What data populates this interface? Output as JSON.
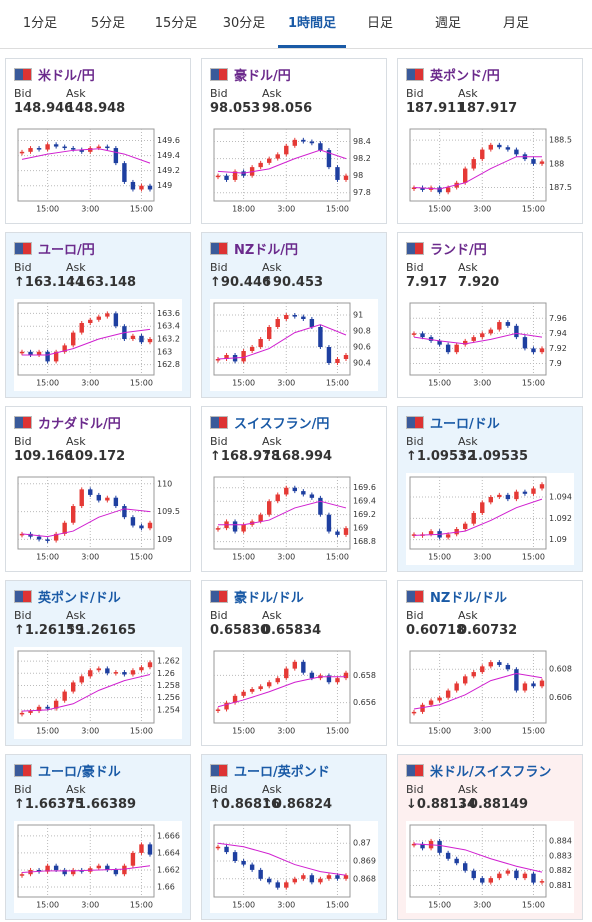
{
  "tabs": [
    "1分足",
    "5分足",
    "15分足",
    "30分足",
    "1時間足",
    "日足",
    "週足",
    "月足"
  ],
  "active_tab": 4,
  "bid_label": "Bid",
  "ask_label": "Ask",
  "cards": [
    {
      "name": "米ドル/円",
      "title_color": "#6b2a8c",
      "background": "#ffffff",
      "bid": "148.946",
      "ask": "148.948",
      "chart": {
        "ylim": [
          148.85,
          149.7
        ],
        "yticks": [
          149.6,
          149.4,
          149.2,
          149
        ],
        "xlim": [
          0,
          15
        ],
        "xticks": [
          {
            "value": 3,
            "label": "15:00"
          },
          {
            "value": 8,
            "label": "3:00"
          },
          {
            "value": 14,
            "label": "15:00"
          }
        ],
        "closes": [
          149.45,
          149.5,
          149.48,
          149.55,
          149.52,
          149.5,
          149.48,
          149.45,
          149.5,
          149.52,
          149.5,
          149.3,
          149.05,
          148.95,
          149.0,
          148.95
        ],
        "ma_x": [
          0,
          3,
          6,
          9,
          12,
          15
        ],
        "ma": [
          149.35,
          149.42,
          149.47,
          149.49,
          149.42,
          149.3
        ]
      }
    },
    {
      "name": "豪ドル/円",
      "title_color": "#6b2a8c",
      "background": "#ffffff",
      "bid": "98.053",
      "ask": "98.056",
      "chart": {
        "ylim": [
          97.75,
          98.5
        ],
        "yticks": [
          98.4,
          98.2,
          98,
          97.8
        ],
        "xlim": [
          0,
          15
        ],
        "xticks": [
          {
            "value": 3,
            "label": "18:00"
          },
          {
            "value": 8,
            "label": "3:00"
          },
          {
            "value": 14,
            "label": "15:00"
          }
        ],
        "closes": [
          98.0,
          97.95,
          98.05,
          98.0,
          98.1,
          98.15,
          98.2,
          98.25,
          98.35,
          98.42,
          98.4,
          98.38,
          98.3,
          98.1,
          97.95,
          98.0
        ],
        "ma_x": [
          0,
          3,
          6,
          9,
          12,
          15
        ],
        "ma": [
          98.05,
          98.03,
          98.08,
          98.2,
          98.3,
          98.2
        ]
      }
    },
    {
      "name": "英ポンド/円",
      "title_color": "#6b2a8c",
      "background": "#ffffff",
      "bid": "187.911",
      "ask": "187.917",
      "chart": {
        "ylim": [
          187.3,
          188.65
        ],
        "yticks": [
          188.5,
          188,
          187.5
        ],
        "xlim": [
          0,
          15
        ],
        "xticks": [
          {
            "value": 3,
            "label": "15:00"
          },
          {
            "value": 8,
            "label": "3:00"
          },
          {
            "value": 14,
            "label": "15:00"
          }
        ],
        "closes": [
          187.5,
          187.45,
          187.5,
          187.4,
          187.5,
          187.6,
          187.9,
          188.1,
          188.3,
          188.4,
          188.35,
          188.3,
          188.2,
          188.1,
          188.0,
          188.05
        ],
        "ma_x": [
          0,
          3,
          6,
          9,
          12,
          15
        ],
        "ma": [
          187.5,
          187.47,
          187.6,
          187.9,
          188.15,
          188.15
        ]
      }
    },
    {
      "name": "ユーロ/円",
      "title_color": "#6b2a8c",
      "background": "#eaf4fc",
      "bid": "↑163.144",
      "ask": "↑163.148",
      "chart": {
        "ylim": [
          162.7,
          163.7
        ],
        "yticks": [
          163.6,
          163.4,
          163.2,
          163,
          162.8
        ],
        "xlim": [
          0,
          15
        ],
        "xticks": [
          {
            "value": 3,
            "label": "15:00"
          },
          {
            "value": 8,
            "label": "3:00"
          },
          {
            "value": 14,
            "label": "15:00"
          }
        ],
        "closes": [
          163.0,
          162.95,
          163.0,
          162.85,
          163.0,
          163.1,
          163.3,
          163.45,
          163.5,
          163.55,
          163.6,
          163.4,
          163.2,
          163.25,
          163.15,
          163.2
        ],
        "ma_x": [
          0,
          3,
          6,
          9,
          12,
          15
        ],
        "ma": [
          162.95,
          162.95,
          163.05,
          163.2,
          163.3,
          163.35
        ]
      }
    },
    {
      "name": "NZドル/円",
      "title_color": "#6b2a8c",
      "background": "#eaf4fc",
      "bid": "↑90.446",
      "ask": "↑90.453",
      "chart": {
        "ylim": [
          90.3,
          91.1
        ],
        "yticks": [
          91,
          90.8,
          90.6,
          90.4
        ],
        "xlim": [
          0,
          15
        ],
        "xticks": [
          {
            "value": 3,
            "label": "15:00"
          },
          {
            "value": 8,
            "label": "3:00"
          },
          {
            "value": 14,
            "label": "15:00"
          }
        ],
        "closes": [
          90.45,
          90.5,
          90.42,
          90.55,
          90.6,
          90.7,
          90.85,
          90.95,
          91.0,
          90.98,
          90.95,
          90.85,
          90.6,
          90.4,
          90.45,
          90.5
        ],
        "ma_x": [
          0,
          3,
          6,
          9,
          12,
          15
        ],
        "ma": [
          90.45,
          90.47,
          90.58,
          90.78,
          90.88,
          90.75
        ]
      }
    },
    {
      "name": "ランド/円",
      "title_color": "#6b2a8c",
      "background": "#ffffff",
      "bid": "7.917",
      "ask": "7.920",
      "chart": {
        "ylim": [
          7.89,
          7.975
        ],
        "yticks": [
          7.96,
          7.94,
          7.92,
          7.9
        ],
        "xlim": [
          0,
          15
        ],
        "xticks": [
          {
            "value": 3,
            "label": "15:00"
          },
          {
            "value": 8,
            "label": "3:00"
          },
          {
            "value": 14,
            "label": "15:00"
          }
        ],
        "closes": [
          7.94,
          7.935,
          7.93,
          7.925,
          7.915,
          7.925,
          7.93,
          7.935,
          7.94,
          7.945,
          7.955,
          7.95,
          7.935,
          7.92,
          7.915,
          7.92
        ],
        "ma_x": [
          0,
          3,
          6,
          9,
          12,
          15
        ],
        "ma": [
          7.935,
          7.93,
          7.926,
          7.932,
          7.94,
          7.935
        ]
      }
    },
    {
      "name": "カナダドル/円",
      "title_color": "#6b2a8c",
      "background": "#ffffff",
      "bid": "109.166",
      "ask": "109.172",
      "chart": {
        "ylim": [
          108.9,
          110.05
        ],
        "yticks": [
          110,
          109.5,
          109
        ],
        "xlim": [
          0,
          15
        ],
        "xticks": [
          {
            "value": 3,
            "label": "15:00"
          },
          {
            "value": 8,
            "label": "3:00"
          },
          {
            "value": 14,
            "label": "15:00"
          }
        ],
        "closes": [
          109.1,
          109.05,
          109.0,
          108.98,
          109.1,
          109.3,
          109.6,
          109.9,
          109.8,
          109.7,
          109.75,
          109.6,
          109.4,
          109.25,
          109.2,
          109.3
        ],
        "ma_x": [
          0,
          3,
          6,
          9,
          12,
          15
        ],
        "ma": [
          109.1,
          109.05,
          109.15,
          109.4,
          109.55,
          109.5
        ]
      }
    },
    {
      "name": "スイスフラン/円",
      "title_color": "#1a5aa6",
      "background": "#ffffff",
      "bid": "↑168.978",
      "ask": "↑168.994",
      "chart": {
        "ylim": [
          168.75,
          169.7
        ],
        "yticks": [
          169.6,
          169.4,
          169.2,
          169,
          168.8
        ],
        "xlim": [
          0,
          15
        ],
        "xticks": [
          {
            "value": 3,
            "label": "15:00"
          },
          {
            "value": 8,
            "label": "3:00"
          },
          {
            "value": 14,
            "label": "15:00"
          }
        ],
        "closes": [
          169.0,
          169.1,
          168.95,
          169.05,
          169.1,
          169.2,
          169.4,
          169.5,
          169.6,
          169.55,
          169.5,
          169.45,
          169.2,
          168.95,
          168.9,
          169.0
        ],
        "ma_x": [
          0,
          3,
          6,
          9,
          12,
          15
        ],
        "ma": [
          169.05,
          169.05,
          169.12,
          169.3,
          169.4,
          169.3
        ]
      }
    },
    {
      "name": "ユーロ/ドル",
      "title_color": "#1a5aa6",
      "background": "#eaf4fc",
      "bid": "↑1.09532",
      "ask": "↑1.09535",
      "chart": {
        "ylim": [
          1.0895,
          1.0955
        ],
        "yticks": [
          1.094,
          1.092,
          1.09
        ],
        "xlim": [
          0,
          15
        ],
        "xticks": [
          {
            "value": 3,
            "label": "15:00"
          },
          {
            "value": 8,
            "label": "3:00"
          },
          {
            "value": 14,
            "label": "15:00"
          }
        ],
        "closes": [
          1.0905,
          1.0905,
          1.0908,
          1.0902,
          1.0905,
          1.091,
          1.0915,
          1.0925,
          1.0935,
          1.094,
          1.0942,
          1.0938,
          1.0945,
          1.0943,
          1.0948,
          1.0952
        ],
        "ma_x": [
          0,
          3,
          6,
          9,
          12,
          15
        ],
        "ma": [
          1.0904,
          1.0905,
          1.0908,
          1.0918,
          1.093,
          1.0938
        ]
      }
    },
    {
      "name": "英ポンド/ドル",
      "title_color": "#1a5aa6",
      "background": "#eaf4fc",
      "bid": "↑1.26159",
      "ask": "↑1.26165",
      "chart": {
        "ylim": [
          1.2525,
          1.263
        ],
        "yticks": [
          1.262,
          1.26,
          1.258,
          1.256,
          1.254
        ],
        "xlim": [
          0,
          15
        ],
        "xticks": [
          {
            "value": 3,
            "label": "15:00"
          },
          {
            "value": 8,
            "label": "3:00"
          },
          {
            "value": 14,
            "label": "15:00"
          }
        ],
        "closes": [
          1.2535,
          1.2538,
          1.2545,
          1.2542,
          1.2555,
          1.257,
          1.2585,
          1.2595,
          1.2605,
          1.2608,
          1.26,
          1.2602,
          1.2598,
          1.2605,
          1.261,
          1.2618
        ],
        "ma_x": [
          0,
          3,
          6,
          9,
          12,
          15
        ],
        "ma": [
          1.2538,
          1.254,
          1.255,
          1.2572,
          1.2588,
          1.2598
        ]
      }
    },
    {
      "name": "豪ドル/ドル",
      "title_color": "#1a5aa6",
      "background": "#ffffff",
      "bid": "0.65830",
      "ask": "0.65834",
      "chart": {
        "ylim": [
          0.6548,
          0.6595
        ],
        "yticks": [
          0.658,
          0.656
        ],
        "xlim": [
          0,
          15
        ],
        "xticks": [
          {
            "value": 3,
            "label": "15:00"
          },
          {
            "value": 8,
            "label": "3:00"
          },
          {
            "value": 14,
            "label": "15:00"
          }
        ],
        "closes": [
          0.6555,
          0.656,
          0.6565,
          0.6568,
          0.657,
          0.6572,
          0.6575,
          0.6578,
          0.6585,
          0.659,
          0.6582,
          0.6578,
          0.658,
          0.6575,
          0.6578,
          0.6582
        ],
        "ma_x": [
          0,
          3,
          6,
          9,
          12,
          15
        ],
        "ma": [
          0.6557,
          0.6562,
          0.6568,
          0.6575,
          0.6579,
          0.6579
        ]
      }
    },
    {
      "name": "NZドル/ドル",
      "title_color": "#1a5aa6",
      "background": "#ffffff",
      "bid": "0.60718",
      "ask": "0.60732",
      "chart": {
        "ylim": [
          0.6045,
          0.609
        ],
        "yticks": [
          0.608,
          0.606
        ],
        "xlim": [
          0,
          15
        ],
        "xticks": [
          {
            "value": 3,
            "label": "15:00"
          },
          {
            "value": 8,
            "label": "3:00"
          },
          {
            "value": 14,
            "label": "15:00"
          }
        ],
        "closes": [
          0.605,
          0.6055,
          0.6058,
          0.606,
          0.6065,
          0.607,
          0.6075,
          0.6078,
          0.6082,
          0.6085,
          0.6083,
          0.608,
          0.6065,
          0.607,
          0.6068,
          0.6072
        ],
        "ma_x": [
          0,
          3,
          6,
          9,
          12,
          15
        ],
        "ma": [
          0.6052,
          0.6055,
          0.6062,
          0.6072,
          0.6077,
          0.6074
        ]
      }
    },
    {
      "name": "ユーロ/豪ドル",
      "title_color": "#1a5aa6",
      "background": "#eaf4fc",
      "bid": "↑1.66375",
      "ask": "↑1.66389",
      "chart": {
        "ylim": [
          1.6593,
          1.6668
        ],
        "yticks": [
          1.666,
          1.664,
          1.662,
          1.66
        ],
        "xlim": [
          0,
          15
        ],
        "xticks": [
          {
            "value": 3,
            "label": "15:00"
          },
          {
            "value": 8,
            "label": "3:00"
          },
          {
            "value": 14,
            "label": "15:00"
          }
        ],
        "closes": [
          1.6615,
          1.662,
          1.6618,
          1.6625,
          1.662,
          1.6615,
          1.662,
          1.6618,
          1.6622,
          1.6625,
          1.662,
          1.6615,
          1.6625,
          1.664,
          1.665,
          1.6638
        ],
        "ma_x": [
          0,
          3,
          6,
          9,
          12,
          15
        ],
        "ma": [
          1.6617,
          1.6619,
          1.6619,
          1.662,
          1.6621,
          1.6625
        ]
      }
    },
    {
      "name": "ユーロ/英ポンド",
      "title_color": "#1a5aa6",
      "background": "#eaf4fc",
      "bid": "↑0.86816",
      "ask": "↑0.86824",
      "chart": {
        "ylim": [
          0.8672,
          0.8708
        ],
        "yticks": [
          0.87,
          0.869,
          0.868
        ],
        "xlim": [
          0,
          15
        ],
        "xticks": [
          {
            "value": 3,
            "label": "15:00"
          },
          {
            "value": 8,
            "label": "3:00"
          },
          {
            "value": 14,
            "label": "15:00"
          }
        ],
        "closes": [
          0.8698,
          0.8695,
          0.869,
          0.8688,
          0.8685,
          0.868,
          0.8678,
          0.8675,
          0.8678,
          0.868,
          0.8682,
          0.8678,
          0.868,
          0.8682,
          0.868,
          0.8682
        ],
        "ma_x": [
          0,
          3,
          6,
          9,
          12,
          15
        ],
        "ma": [
          0.87,
          0.8698,
          0.8694,
          0.8688,
          0.8684,
          0.8682
        ]
      }
    },
    {
      "name": "米ドル/スイスフラン",
      "title_color": "#1a5aa6",
      "background": "#fdf0f0",
      "bid": "↓0.88134",
      "ask": "↓0.88149",
      "chart": {
        "ylim": [
          0.8805,
          0.8848
        ],
        "yticks": [
          0.884,
          0.883,
          0.882,
          0.881
        ],
        "xlim": [
          0,
          15
        ],
        "xticks": [
          {
            "value": 3,
            "label": "15:00"
          },
          {
            "value": 8,
            "label": "3:00"
          },
          {
            "value": 14,
            "label": "15:00"
          }
        ],
        "closes": [
          0.8838,
          0.8835,
          0.884,
          0.8832,
          0.8828,
          0.8825,
          0.882,
          0.8815,
          0.8812,
          0.8815,
          0.8818,
          0.882,
          0.8815,
          0.8818,
          0.8812,
          0.8813
        ],
        "ma_x": [
          0,
          3,
          6,
          9,
          12,
          15
        ],
        "ma": [
          0.8838,
          0.8837,
          0.8834,
          0.8828,
          0.8823,
          0.8819
        ]
      }
    }
  ]
}
